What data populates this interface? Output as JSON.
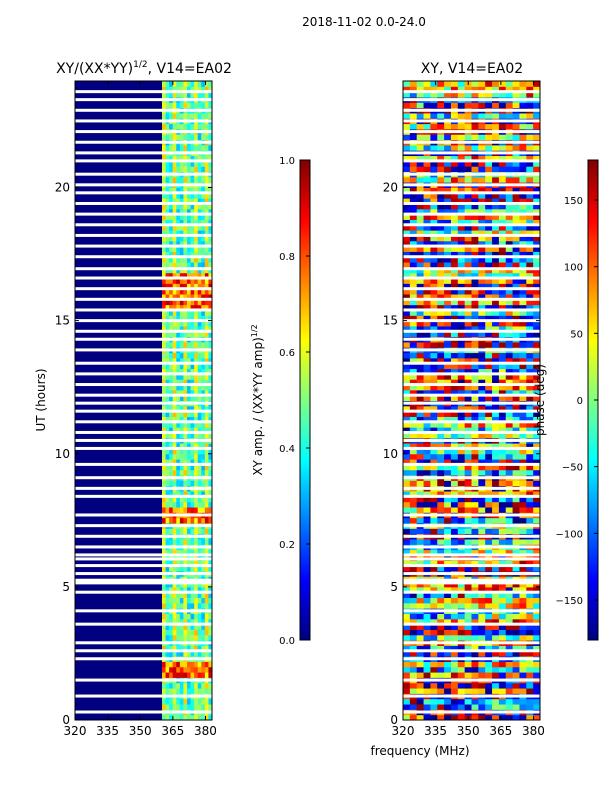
{
  "figure_title": "2018-11-02 0.0-24.0",
  "shared_xlabel": "frequency (MHz)",
  "colors": {
    "background": "#000080",
    "blank_row": "#ffffff",
    "jet": [
      "#000080",
      "#0000ff",
      "#0080ff",
      "#00ffff",
      "#80ff80",
      "#ffff00",
      "#ff8000",
      "#ff0000",
      "#800000"
    ]
  },
  "chart_data": [
    {
      "type": "heatmap",
      "title_main": "XY/(XX*YY)",
      "title_sup": "1/2",
      "title_tail": ", V14=EA02",
      "xlabel": "",
      "ylabel": "UT (hours)",
      "xlim": [
        320,
        383
      ],
      "ylim": [
        0,
        24
      ],
      "xticks": [
        "320",
        "335",
        "350",
        "365",
        "380"
      ],
      "xtick_values": [
        320,
        335,
        350,
        365,
        380
      ],
      "yticks": [
        "0",
        "5",
        "10",
        "15",
        "20"
      ],
      "ytick_values": [
        0,
        5,
        10,
        15,
        20
      ],
      "bright_band_mhz": [
        360,
        383
      ],
      "colorbar": {
        "label_main": "XY amp. / (XX*YY amp)",
        "label_sup": "1/2",
        "range": [
          0.0,
          1.0
        ],
        "ticks": [
          "0.0",
          "0.2",
          "0.4",
          "0.6",
          "0.8",
          "1.0"
        ],
        "tick_values": [
          0.0,
          0.2,
          0.4,
          0.6,
          0.8,
          1.0
        ]
      }
    },
    {
      "type": "heatmap",
      "title": "XY, V14=EA02",
      "xlabel": "frequency (MHz)",
      "ylabel": "",
      "xlim": [
        320,
        383
      ],
      "ylim": [
        0,
        24
      ],
      "xticks": [
        "320",
        "335",
        "350",
        "365",
        "380"
      ],
      "xtick_values": [
        320,
        335,
        350,
        365,
        380
      ],
      "yticks": [
        "0",
        "5",
        "10",
        "15",
        "20"
      ],
      "ytick_values": [
        0,
        5,
        10,
        15,
        20
      ],
      "colorbar": {
        "label": "phase (deg)",
        "range": [
          -180,
          180
        ],
        "ticks": [
          "−150",
          "−100",
          "−50",
          "0",
          "50",
          "100",
          "150"
        ],
        "tick_values": [
          -150,
          -100,
          -50,
          0,
          50,
          100,
          150
        ]
      }
    }
  ],
  "gap_rows_hours": [
    0.3,
    0.9,
    1.5,
    2.3,
    2.6,
    2.9,
    3.6,
    4.1,
    4.8,
    5.15,
    5.25,
    5.5,
    5.8,
    6.05,
    6.2,
    6.5,
    6.9,
    7.3,
    7.7,
    8.4,
    8.7,
    9.1,
    9.6,
    10.2,
    10.5,
    10.8,
    11.2,
    11.6,
    11.9,
    12.2,
    12.6,
    13.0,
    13.4,
    13.9,
    14.3,
    14.6,
    15.0,
    15.4,
    15.8,
    16.2,
    16.6,
    16.95,
    17.4,
    17.8,
    18.2,
    18.6,
    19.0,
    19.4,
    19.8,
    20.1,
    20.5,
    21.0,
    21.3,
    21.7,
    22.1,
    22.5,
    22.9,
    23.3,
    23.6
  ]
}
